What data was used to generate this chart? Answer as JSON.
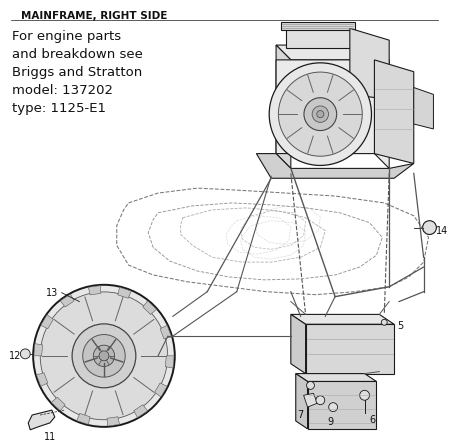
{
  "title": "MAINFRAME, RIGHT SIDE",
  "info_text": "For engine parts\nand breakdown see\nBriggs and Stratton\nmodel: 137202\ntype: 1125-E1",
  "background_color": "#ffffff",
  "fig_width": 4.51,
  "fig_height": 4.44,
  "dpi": 100
}
